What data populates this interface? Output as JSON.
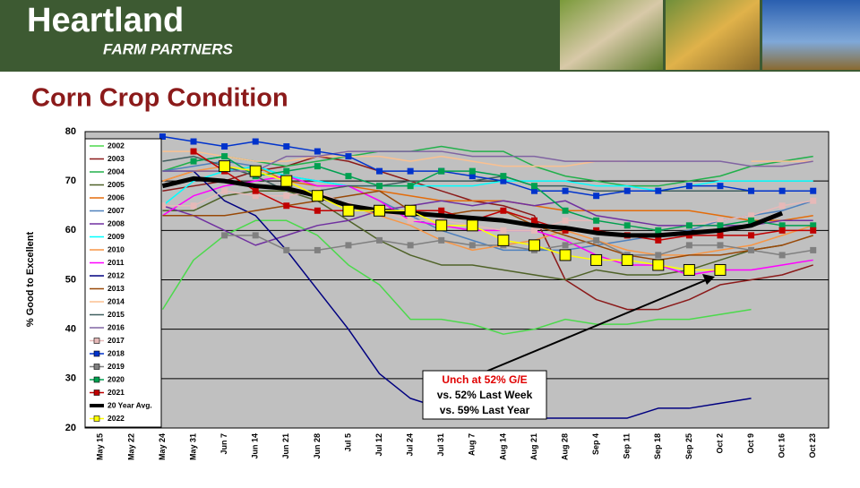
{
  "header": {
    "title": "Heartland",
    "subtitle": "FARM PARTNERS"
  },
  "chart_data": {
    "type": "line",
    "title": "Corn Crop Condition",
    "y_label": "% Good to Excellent",
    "categories": [
      "May 15",
      "May 22",
      "May 24",
      "May 31",
      "Jun 7",
      "Jun 14",
      "Jun 21",
      "Jun 28",
      "Jul 5",
      "Jul 12",
      "Jul 24",
      "Jul 31",
      "Aug 7",
      "Aug 14",
      "Aug 21",
      "Aug 28",
      "Sep 4",
      "Sep 11",
      "Sep 18",
      "Sep 25",
      "Oct 2",
      "Oct 9",
      "Oct 16",
      "Oct 23"
    ],
    "ylim": [
      20,
      80
    ],
    "yticks": [
      20,
      30,
      40,
      50,
      60,
      70,
      80
    ],
    "grid": true,
    "annotation": [
      "Unch at 52% G/E",
      "vs. 52% Last Week",
      "vs. 59% Last Year"
    ],
    "series": [
      {
        "name": "2002",
        "color": "#4cd94c",
        "values": [
          null,
          null,
          44,
          54,
          59,
          62,
          62,
          59,
          53,
          49,
          42,
          42,
          41,
          39,
          40,
          42,
          41,
          41,
          42,
          42,
          43,
          44,
          null,
          null
        ]
      },
      {
        "name": "2003",
        "color": "#8b1a1a",
        "values": [
          null,
          null,
          68,
          69,
          70,
          72,
          73,
          75,
          74,
          72,
          70,
          68,
          66,
          65,
          63,
          50,
          46,
          44,
          44,
          46,
          49,
          50,
          51,
          53
        ]
      },
      {
        "name": "2004",
        "color": "#22b04b",
        "values": [
          null,
          null,
          72,
          74,
          75,
          74,
          73,
          74,
          75,
          76,
          76,
          77,
          76,
          76,
          73,
          71,
          70,
          69,
          69,
          70,
          71,
          73,
          74,
          75
        ]
      },
      {
        "name": "2005",
        "color": "#4f6228",
        "values": [
          null,
          null,
          64,
          64,
          67,
          68,
          68,
          66,
          62,
          58,
          55,
          53,
          53,
          52,
          51,
          50,
          52,
          51,
          51,
          52,
          54,
          56,
          57,
          null
        ]
      },
      {
        "name": "2006",
        "color": "#e46c0a",
        "values": [
          null,
          null,
          70,
          72,
          72,
          73,
          70,
          69,
          69,
          68,
          67,
          66,
          66,
          66,
          65,
          64,
          64,
          64,
          64,
          64,
          63,
          62,
          62,
          63
        ]
      },
      {
        "name": "2007",
        "color": "#4f81bd",
        "values": [
          null,
          null,
          72,
          73,
          74,
          73,
          71,
          70,
          69,
          66,
          63,
          60,
          58,
          56,
          56,
          56,
          57,
          58,
          59,
          60,
          62,
          63,
          64,
          66
        ]
      },
      {
        "name": "2008",
        "color": "#7030a0",
        "values": [
          null,
          null,
          65,
          63,
          60,
          57,
          59,
          61,
          62,
          64,
          65,
          66,
          65,
          66,
          65,
          66,
          63,
          62,
          61,
          61,
          61,
          61,
          62,
          62
        ]
      },
      {
        "name": "2009",
        "color": "#00ffff",
        "values": [
          null,
          null,
          65,
          70,
          72,
          73,
          71,
          70,
          69,
          69,
          69,
          69,
          69,
          70,
          70,
          70,
          69,
          69,
          68,
          69,
          70,
          70,
          70,
          70
        ]
      },
      {
        "name": "2010",
        "color": "#f79646",
        "values": [
          null,
          null,
          70,
          72,
          73,
          72,
          70,
          67,
          65,
          63,
          61,
          58,
          56,
          57,
          58,
          60,
          58,
          56,
          55,
          55,
          56,
          57,
          59,
          61
        ]
      },
      {
        "name": "2011",
        "color": "#ff00ff",
        "values": [
          null,
          null,
          63,
          67,
          69,
          70,
          71,
          69,
          69,
          66,
          62,
          61,
          60,
          60,
          60,
          58,
          55,
          53,
          53,
          51,
          52,
          52,
          53,
          54
        ]
      },
      {
        "name": "2012",
        "color": "#000080",
        "values": [
          null,
          null,
          72,
          72,
          66,
          63,
          56,
          48,
          40,
          31,
          26,
          24,
          23,
          23,
          22,
          22,
          22,
          22,
          24,
          24,
          25,
          26,
          null,
          null
        ]
      },
      {
        "name": "2013",
        "color": "#984807",
        "values": [
          null,
          null,
          63,
          63,
          63,
          64,
          65,
          66,
          67,
          68,
          64,
          63,
          64,
          64,
          61,
          59,
          57,
          55,
          54,
          55,
          55,
          56,
          57,
          59
        ]
      },
      {
        "name": "2014",
        "color": "#fac090",
        "values": [
          null,
          null,
          76,
          76,
          75,
          74,
          74,
          75,
          75,
          75,
          74,
          75,
          74,
          73,
          73,
          73,
          74,
          74,
          null,
          null,
          null,
          74,
          74,
          74
        ]
      },
      {
        "name": "2015",
        "color": "#3f5f5f",
        "values": [
          null,
          null,
          74,
          75,
          73,
          71,
          68,
          68,
          69,
          69,
          70,
          70,
          70,
          71,
          69,
          69,
          68,
          68,
          68,
          68,
          68,
          68,
          68,
          68
        ]
      },
      {
        "name": "2016",
        "color": "#8064a2",
        "values": [
          null,
          null,
          72,
          72,
          72,
          72,
          75,
          75,
          76,
          76,
          76,
          76,
          75,
          75,
          75,
          74,
          74,
          74,
          74,
          74,
          74,
          73,
          73,
          74
        ]
      },
      {
        "name": "2017",
        "color": "#e6b9b8",
        "marker": "square",
        "values": [
          null,
          null,
          65,
          65,
          68,
          67,
          67,
          68,
          65,
          64,
          62,
          62,
          61,
          60,
          60,
          62,
          62,
          61,
          60,
          61,
          62,
          63,
          65,
          66
        ]
      },
      {
        "name": "2018",
        "color": "#0033cc",
        "marker": "square",
        "values": [
          null,
          null,
          79,
          78,
          77,
          78,
          77,
          76,
          75,
          72,
          72,
          72,
          71,
          70,
          68,
          68,
          67,
          68,
          68,
          69,
          69,
          68,
          68,
          68
        ]
      },
      {
        "name": "2019",
        "color": "#808080",
        "marker": "square",
        "values": [
          null,
          null,
          null,
          null,
          59,
          59,
          56,
          56,
          57,
          58,
          57,
          58,
          57,
          57,
          56,
          57,
          58,
          55,
          55,
          57,
          57,
          56,
          55,
          56
        ]
      },
      {
        "name": "2020",
        "color": "#00a050",
        "marker": "square",
        "values": [
          null,
          null,
          null,
          74,
          75,
          71,
          72,
          73,
          71,
          69,
          69,
          72,
          72,
          71,
          69,
          64,
          62,
          61,
          60,
          61,
          61,
          62,
          61,
          61
        ]
      },
      {
        "name": "2021",
        "color": "#c00000",
        "marker": "square",
        "values": [
          null,
          null,
          null,
          76,
          72,
          68,
          65,
          64,
          64,
          64,
          64,
          64,
          62,
          64,
          62,
          60,
          60,
          59,
          58,
          59,
          59,
          59,
          60,
          60
        ]
      },
      {
        "name": "20 Year Avg.",
        "color": "#000000",
        "line_width": 5,
        "values": [
          null,
          null,
          69,
          70.5,
          70,
          69,
          68.5,
          67,
          65,
          64,
          63.5,
          63,
          62.5,
          62,
          61,
          60.5,
          59.5,
          59,
          59,
          59.5,
          60,
          61,
          63.5,
          null
        ]
      },
      {
        "name": "2022",
        "color": "#ffff00",
        "marker": "square",
        "values": [
          null,
          null,
          null,
          null,
          73,
          72,
          70,
          67,
          64,
          64,
          64,
          61,
          61,
          58,
          57,
          55,
          54,
          54,
          53,
          52,
          52,
          null,
          null,
          null
        ]
      }
    ]
  }
}
